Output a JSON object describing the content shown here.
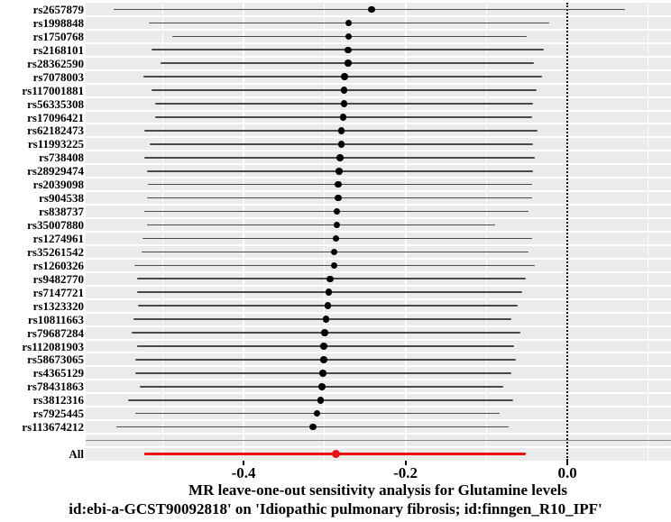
{
  "figure": {
    "title_line1": "MR leave-one-out sensitivity analysis for Glutamine levels",
    "title_line2": "id:ebi-a-GCST90092818' on 'Idiopathic pulmonary fibrosis; id:finngen_R10_IPF'"
  },
  "chart_data": {
    "type": "forest",
    "title": "MR leave-one-out sensitivity analysis for Glutamine levels id:ebi-a-GCST90092818' on 'Idiopathic pulmonary fibrosis; id:finngen_R10_IPF'",
    "xlabel": "MR leave-one-out sensitivity analysis for Glutamine levels id:ebi-a-GCST90092818' on 'Idiopathic pulmonary fibrosis; id:finngen_R10_IPF'",
    "ylabel": "",
    "xlim": [
      -0.595,
      0.128
    ],
    "x_ticks": [
      -0.4,
      -0.2,
      0.0
    ],
    "x_tick_labels": [
      "-0.4",
      "-0.2",
      "0.0"
    ],
    "x_minor_ticks": [
      -0.5,
      -0.3,
      -0.1,
      0.1
    ],
    "zero_line": 0.0,
    "grid": true,
    "colors": {
      "panel_bg": "#ebebeb",
      "grid": "#ffffff",
      "ci_line": "#4a4a4a",
      "point": "#000000",
      "all_row": "#ee1111",
      "separator": "#8a8a8a",
      "zero_line": "#000000",
      "text": "#000000"
    },
    "rows": [
      {
        "label": "rs2657879",
        "kind": "snp",
        "lo": -0.56,
        "est": -0.242,
        "hi": 0.071
      },
      {
        "label": "rs1998848",
        "kind": "snp",
        "lo": -0.517,
        "est": -0.27,
        "hi": -0.022
      },
      {
        "label": "rs1750768",
        "kind": "snp",
        "lo": -0.488,
        "est": -0.27,
        "hi": -0.05
      },
      {
        "label": "rs2168101",
        "kind": "snp",
        "lo": -0.514,
        "est": -0.271,
        "hi": -0.029
      },
      {
        "label": "rs28362590",
        "kind": "snp",
        "lo": -0.503,
        "est": -0.271,
        "hi": -0.041
      },
      {
        "label": "rs7078003",
        "kind": "snp",
        "lo": -0.524,
        "est": -0.275,
        "hi": -0.031
      },
      {
        "label": "rs117001881",
        "kind": "snp",
        "lo": -0.514,
        "est": -0.276,
        "hi": -0.038
      },
      {
        "label": "rs56335308",
        "kind": "snp",
        "lo": -0.509,
        "est": -0.276,
        "hi": -0.042
      },
      {
        "label": "rs17096421",
        "kind": "snp",
        "lo": -0.509,
        "est": -0.277,
        "hi": -0.044
      },
      {
        "label": "rs62182473",
        "kind": "snp",
        "lo": -0.523,
        "est": -0.279,
        "hi": -0.037
      },
      {
        "label": "rs11993225",
        "kind": "snp",
        "lo": -0.516,
        "est": -0.279,
        "hi": -0.042
      },
      {
        "label": "rs738408",
        "kind": "snp",
        "lo": -0.523,
        "est": -0.281,
        "hi": -0.04
      },
      {
        "label": "rs28929474",
        "kind": "snp",
        "lo": -0.519,
        "est": -0.282,
        "hi": -0.042
      },
      {
        "label": "rs2039098",
        "kind": "snp",
        "lo": -0.518,
        "est": -0.283,
        "hi": -0.043
      },
      {
        "label": "rs904538",
        "kind": "snp",
        "lo": -0.519,
        "est": -0.283,
        "hi": -0.043
      },
      {
        "label": "rs838737",
        "kind": "snp",
        "lo": -0.523,
        "est": -0.285,
        "hi": -0.048
      },
      {
        "label": "rs35007880",
        "kind": "snp",
        "lo": -0.519,
        "est": -0.285,
        "hi": -0.089
      },
      {
        "label": "rs1274961",
        "kind": "snp",
        "lo": -0.525,
        "est": -0.286,
        "hi": -0.043
      },
      {
        "label": "rs35261542",
        "kind": "snp",
        "lo": -0.526,
        "est": -0.288,
        "hi": -0.048
      },
      {
        "label": "rs1260326",
        "kind": "snp",
        "lo": -0.535,
        "est": -0.288,
        "hi": -0.04
      },
      {
        "label": "rs9482770",
        "kind": "snp",
        "lo": -0.531,
        "est": -0.293,
        "hi": -0.051
      },
      {
        "label": "rs7147721",
        "kind": "snp",
        "lo": -0.531,
        "est": -0.295,
        "hi": -0.056
      },
      {
        "label": "rs1323320",
        "kind": "snp",
        "lo": -0.53,
        "est": -0.296,
        "hi": -0.061
      },
      {
        "label": "rs10811663",
        "kind": "snp",
        "lo": -0.536,
        "est": -0.298,
        "hi": -0.069
      },
      {
        "label": "rs79687284",
        "kind": "snp",
        "lo": -0.538,
        "est": -0.3,
        "hi": -0.058
      },
      {
        "label": "rs112081903",
        "kind": "snp",
        "lo": -0.531,
        "est": -0.301,
        "hi": -0.066
      },
      {
        "label": "rs58673065",
        "kind": "snp",
        "lo": -0.534,
        "est": -0.301,
        "hi": -0.064
      },
      {
        "label": "rs4365129",
        "kind": "snp",
        "lo": -0.534,
        "est": -0.302,
        "hi": -0.069
      },
      {
        "label": "rs78431863",
        "kind": "snp",
        "lo": -0.528,
        "est": -0.303,
        "hi": -0.079
      },
      {
        "label": "rs3812316",
        "kind": "snp",
        "lo": -0.543,
        "est": -0.305,
        "hi": -0.067
      },
      {
        "label": "rs7925445",
        "kind": "snp",
        "lo": -0.534,
        "est": -0.309,
        "hi": -0.084
      },
      {
        "label": "rs113674212",
        "kind": "snp",
        "lo": -0.557,
        "est": -0.314,
        "hi": -0.072
      },
      {
        "label": "",
        "kind": "separator"
      },
      {
        "label": "All",
        "kind": "all",
        "lo": -0.523,
        "est": -0.286,
        "hi": -0.051
      }
    ]
  }
}
